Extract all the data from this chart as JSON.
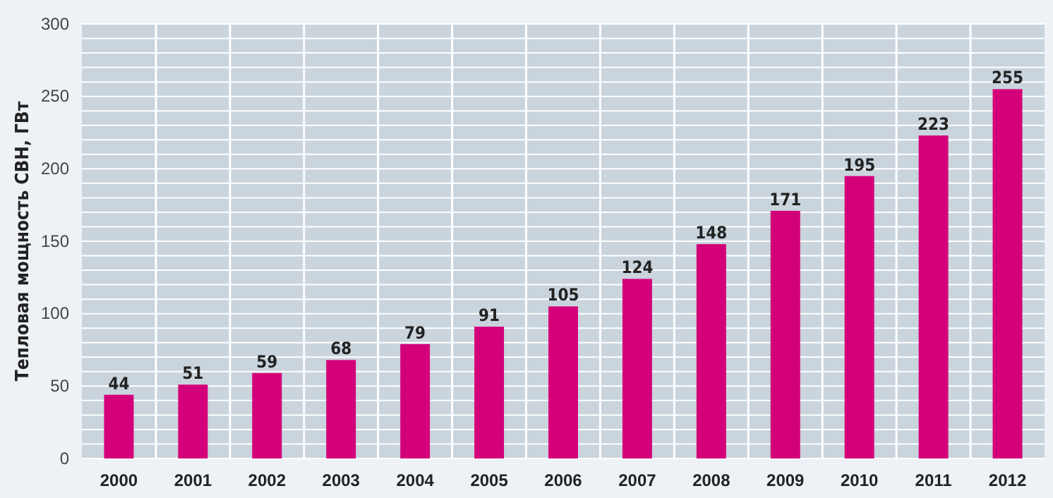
{
  "chart_data": {
    "type": "bar",
    "ylabel": "Тепловая мощность СВН, ГВт",
    "categories": [
      "2000",
      "2001",
      "2002",
      "2003",
      "2004",
      "2005",
      "2006",
      "2007",
      "2008",
      "2009",
      "2010",
      "2011",
      "2012"
    ],
    "values": [
      44,
      51,
      59,
      68,
      79,
      91,
      105,
      124,
      148,
      171,
      195,
      223,
      255
    ],
    "color": "#d4007a",
    "data_labels": true,
    "grid": true,
    "ylim": [
      0,
      300
    ],
    "yticks": [
      0,
      {
        "value": 10,
        "label": null
      },
      {
        "value": 20,
        "label": null
      },
      {
        "value": 30,
        "label": null
      },
      {
        "value": 40,
        "label": null
      },
      50,
      {
        "value": 60,
        "label": null
      },
      {
        "value": 70,
        "label": null
      },
      {
        "value": 80,
        "label": null
      },
      {
        "value": 90,
        "label": null
      },
      100,
      {
        "value": 110,
        "label": null
      },
      {
        "value": 120,
        "label": null
      },
      {
        "value": 130,
        "label": null
      },
      {
        "value": 140,
        "label": null
      },
      150,
      {
        "value": 160,
        "label": null
      },
      {
        "value": 170,
        "label": null
      },
      {
        "value": 180,
        "label": null
      },
      {
        "value": 190,
        "label": null
      },
      200,
      {
        "value": 210,
        "label": null
      },
      {
        "value": 220,
        "label": null
      },
      {
        "value": 230,
        "label": null
      },
      {
        "value": 240,
        "label": null
      },
      250,
      {
        "value": 260,
        "label": null
      },
      {
        "value": 270,
        "label": null
      },
      {
        "value": 280,
        "label": null
      },
      {
        "value": 290,
        "label": null
      },
      300
    ]
  }
}
